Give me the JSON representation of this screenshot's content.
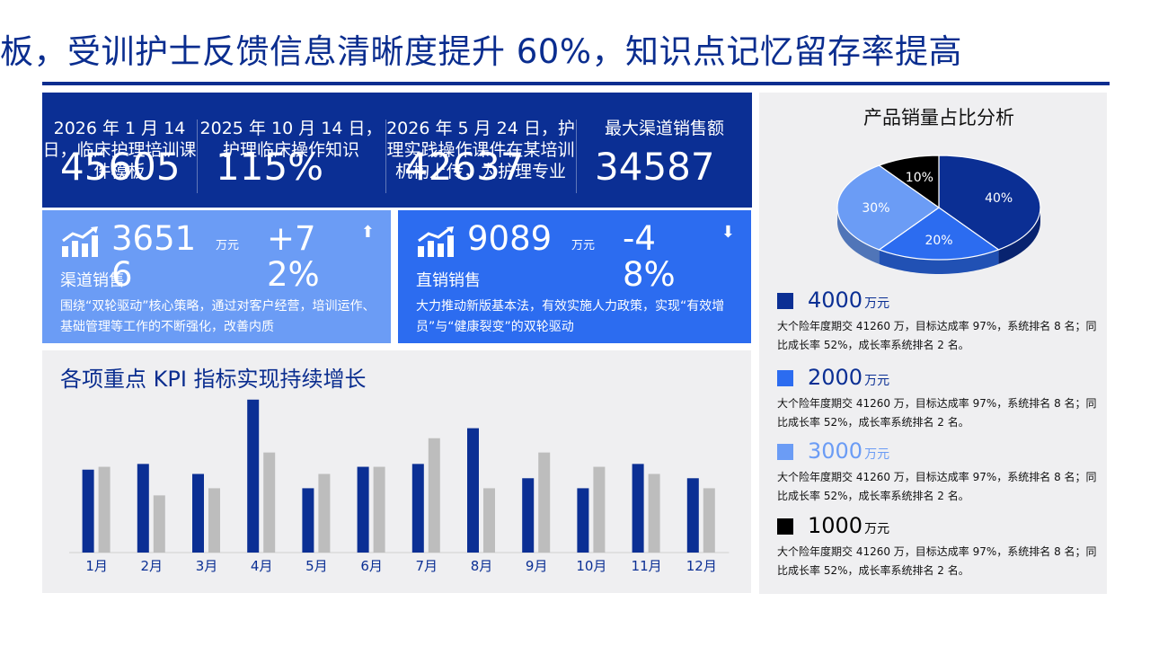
{
  "title": "板，受训护士反馈信息清晰度提升 60%，知识点记忆留存率提高",
  "top_metrics": [
    {
      "label": "2026 年 1 月 14 日，临床护理培训课件模板",
      "value": "45605"
    },
    {
      "label": "2025 年 10 月 14 日，护理临床操作知识",
      "value": "115%"
    },
    {
      "label": "2026 年 5 月 24 日，护理实践操作课件在某培训机构上传，为护理专业",
      "value": "42637"
    },
    {
      "label": "最大渠道销售额",
      "value": "34587"
    }
  ],
  "cards": {
    "channel": {
      "value": "36516",
      "unit": "万元",
      "pct": "+72%",
      "arrow": "⬆",
      "name": "渠道销售",
      "desc": "围绕“双轮驱动”核心策略，通过对客户经营，培训运作、基础管理等工作的不断强化，改善内质"
    },
    "direct": {
      "value": "9089",
      "unit": "万元",
      "pct": "-48%",
      "arrow": "⬇",
      "name": "直销销售",
      "desc": "大力推动新版基本法，有效实施人力政策，实现“有效增员”与“健康裂变”的双轮驱动"
    }
  },
  "bar_panel_title": "各项重点 KPI 指标实现持续增长",
  "pie_title": "产品销量占比分析",
  "legend": [
    {
      "value": "4000",
      "unit": "万元",
      "color": "#0b2f94",
      "desc": "大个险年度期交 41260 万，目标达成率 97%，系统排名 8 名；同比成长率 52%，成长率系统排名 2 名。"
    },
    {
      "value": "2000",
      "unit": "万元",
      "color": "#2c6cf0",
      "desc": "大个险年度期交 41260 万，目标达成率 97%，系统排名 8 名；同比成长率 52%，成长率系统排名 2 名。"
    },
    {
      "value": "3000",
      "unit": "万元",
      "color": "#6b9cf5",
      "desc": "大个险年度期交 41260 万，目标达成率 97%，系统排名 8 名；同比成长率 52%，成长率系统排名 2 名。"
    },
    {
      "value": "1000",
      "unit": "万元",
      "color": "#000000",
      "desc": "大个险年度期交 41260 万，目标达成率 97%，系统排名 8 名；同比成长率 52%，成长率系统排名 2 名。"
    }
  ],
  "icons": {
    "card_icon": "growth-chart-icon"
  },
  "chart_data": [
    {
      "type": "bar",
      "title": "各项重点 KPI 指标实现持续增长",
      "categories": [
        "1月",
        "2月",
        "3月",
        "4月",
        "5月",
        "6月",
        "7月",
        "8月",
        "9月",
        "10月",
        "11月",
        "12月"
      ],
      "series": [
        {
          "values": [
            58,
            62,
            55,
            107,
            45,
            60,
            62,
            87,
            52,
            45,
            62,
            52
          ],
          "color": "#0b2f94"
        },
        {
          "values": [
            60,
            40,
            45,
            70,
            55,
            60,
            80,
            45,
            70,
            60,
            55,
            45
          ],
          "color": "#bdbdbd"
        }
      ],
      "ylim": [
        0,
        110
      ],
      "grid": false
    },
    {
      "type": "pie",
      "title": "产品销量占比分析",
      "slices": [
        {
          "label": "40%",
          "value": 40,
          "color": "#0b2f94"
        },
        {
          "label": "20%",
          "value": 20,
          "color": "#2c6cf0"
        },
        {
          "label": "30%",
          "value": 30,
          "color": "#6b9cf5"
        },
        {
          "label": "10%",
          "value": 10,
          "color": "#000000"
        }
      ]
    }
  ]
}
